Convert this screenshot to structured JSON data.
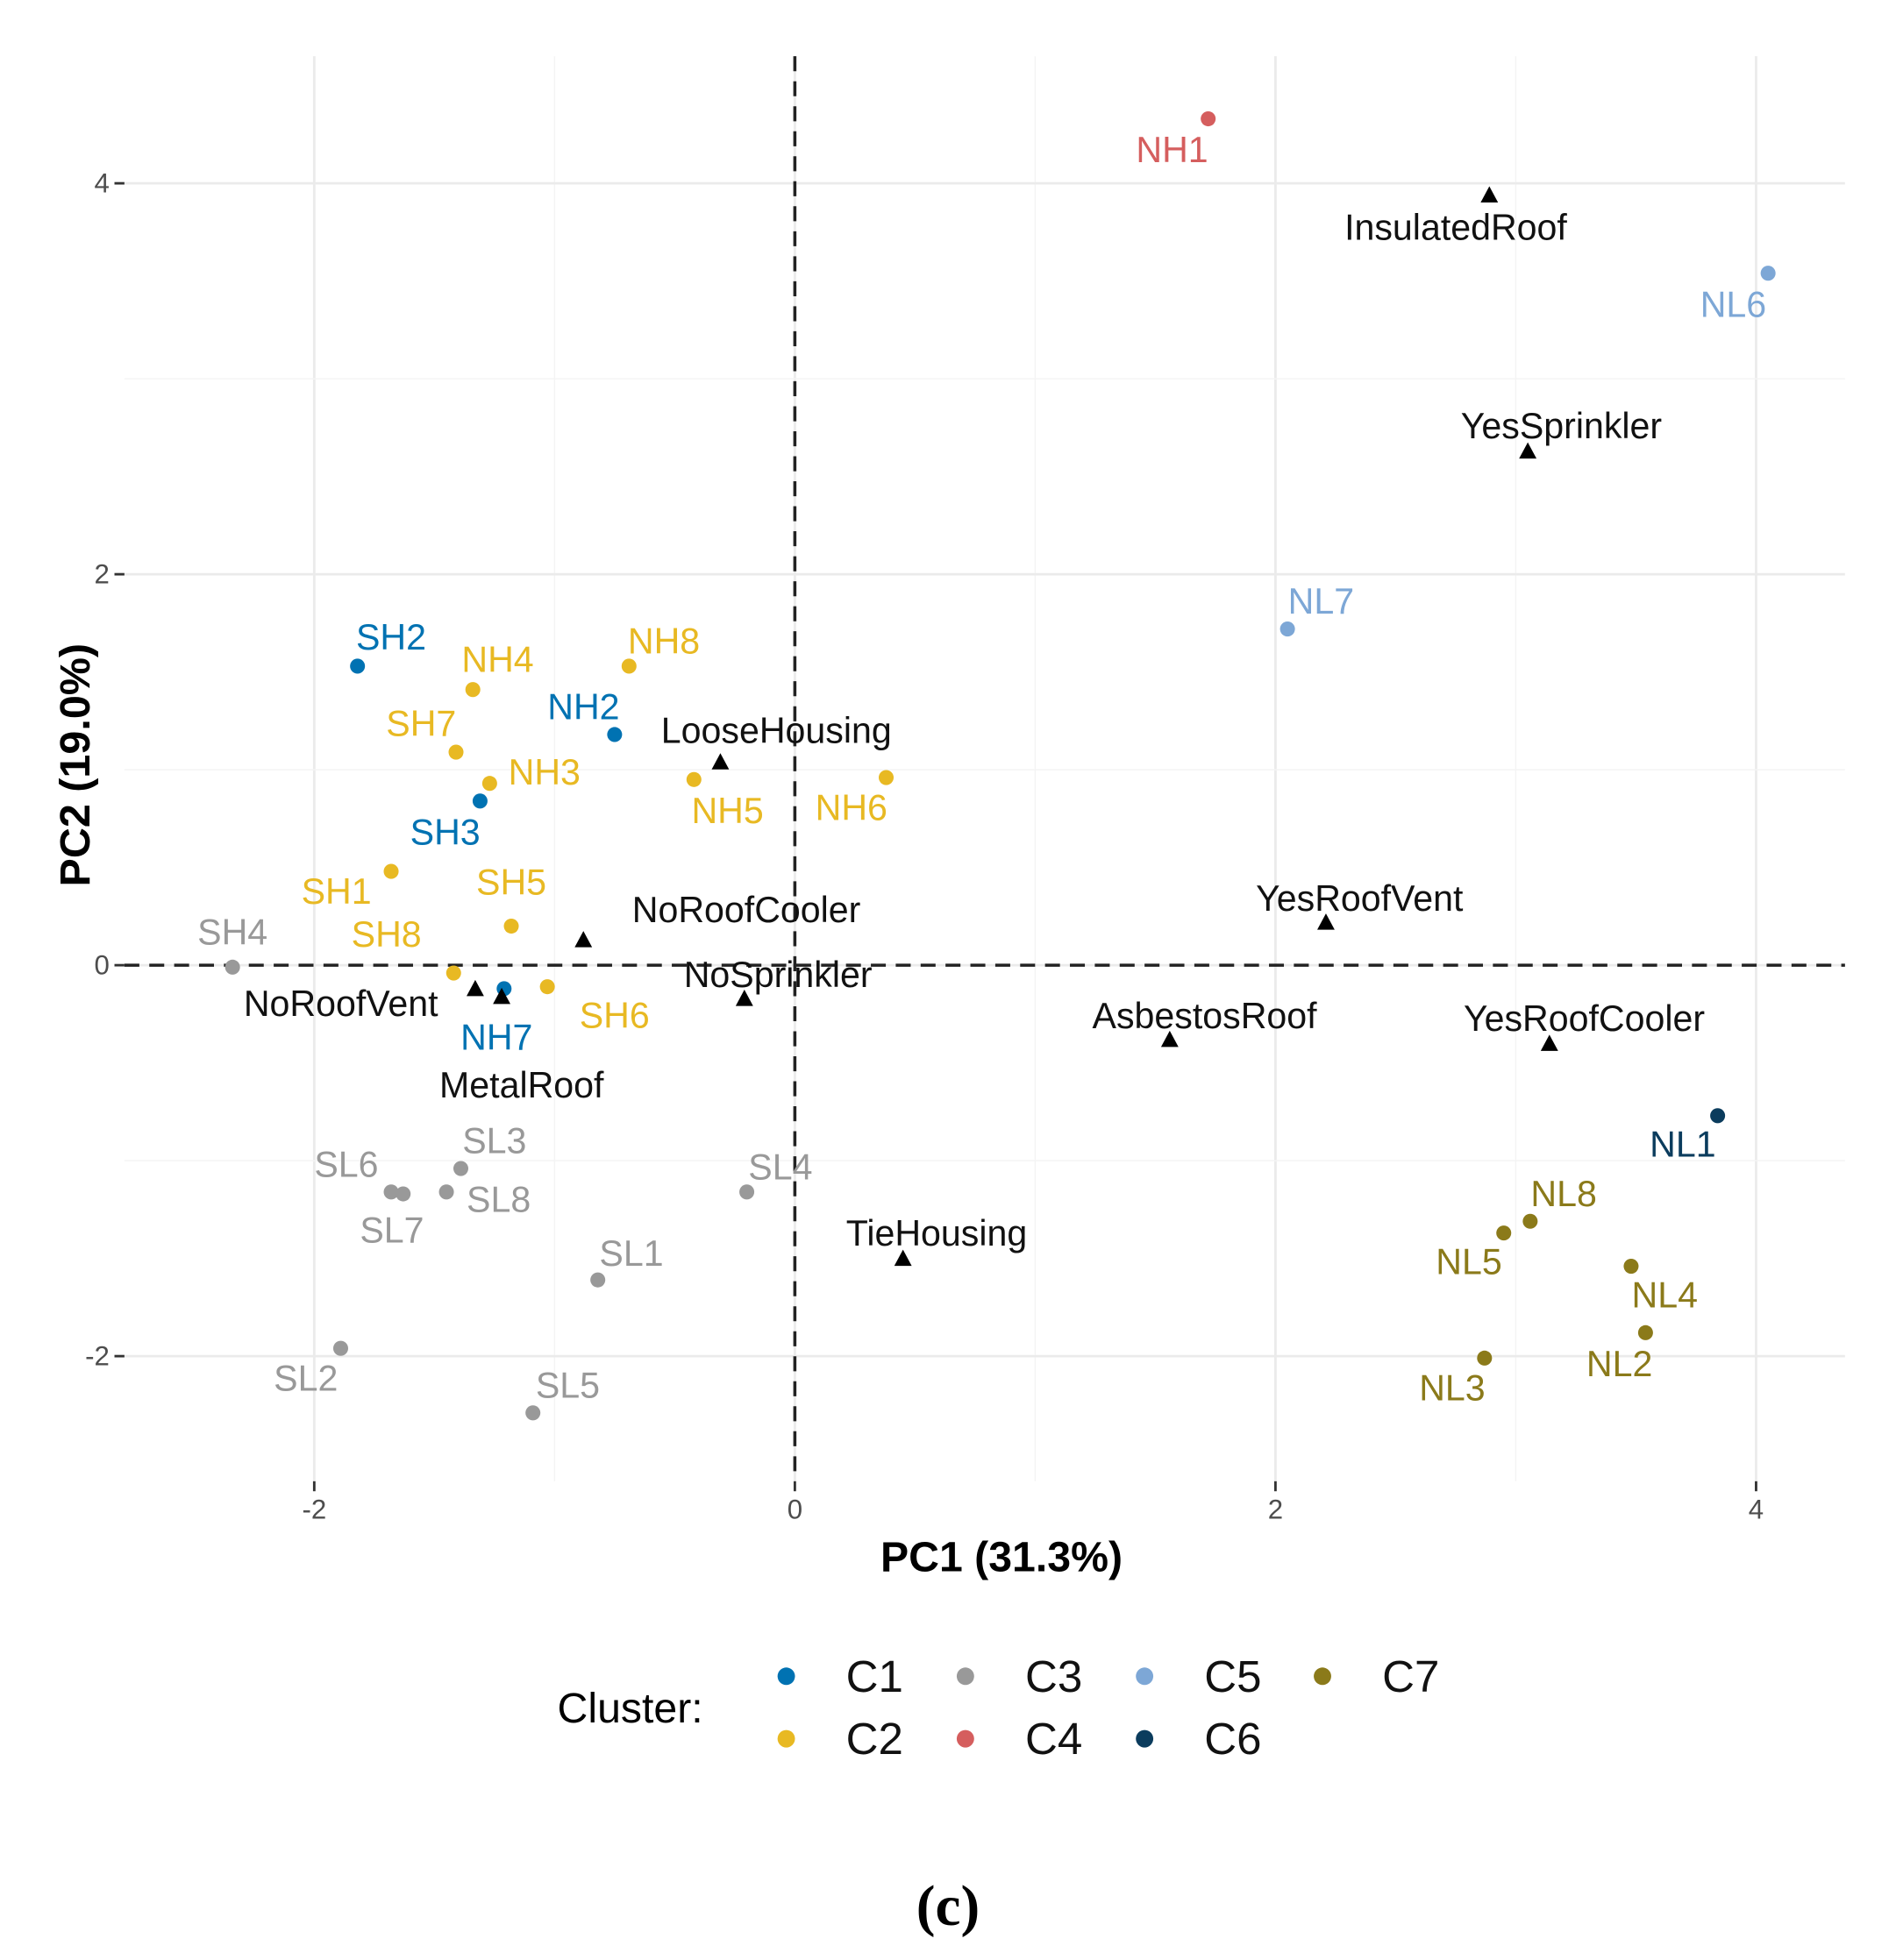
{
  "chart_data": {
    "type": "scatter",
    "title": "",
    "xlabel": "PC1 (31.3%)",
    "ylabel": "PC2 (19.0%)",
    "xlim": [
      -2.79,
      4.37
    ],
    "ylim": [
      -2.64,
      4.65
    ],
    "xticks": [
      -2,
      0,
      2,
      4
    ],
    "yticks": [
      -2,
      0,
      2,
      4
    ],
    "grid": true,
    "reference_lines": {
      "x": 0,
      "y": 0,
      "style": "dashed"
    },
    "legend": {
      "title": "Cluster:",
      "placement": "bottom",
      "entries": [
        {
          "name": "C1",
          "color": "#0072B2"
        },
        {
          "name": "C2",
          "color": "#E8B923"
        },
        {
          "name": "C3",
          "color": "#999999"
        },
        {
          "name": "C4",
          "color": "#D55E5E"
        },
        {
          "name": "C5",
          "color": "#7DA7D6"
        },
        {
          "name": "C6",
          "color": "#0B3C5D"
        },
        {
          "name": "C7",
          "color": "#8B7A1A"
        }
      ]
    },
    "points": [
      {
        "label": "NH1",
        "cluster": "C4",
        "x": 1.72,
        "y": 4.33
      },
      {
        "label": "NL6",
        "cluster": "C5",
        "x": 4.05,
        "y": 3.54
      },
      {
        "label": "NL7",
        "cluster": "C5",
        "x": 2.05,
        "y": 1.72
      },
      {
        "label": "SH2",
        "cluster": "C1",
        "x": -1.82,
        "y": 1.53
      },
      {
        "label": "NH4",
        "cluster": "C2",
        "x": -1.34,
        "y": 1.41
      },
      {
        "label": "NH8",
        "cluster": "C2",
        "x": -0.69,
        "y": 1.53
      },
      {
        "label": "NH2",
        "cluster": "C1",
        "x": -0.75,
        "y": 1.18
      },
      {
        "label": "SH7",
        "cluster": "C2",
        "x": -1.41,
        "y": 1.09
      },
      {
        "label": "NH3",
        "cluster": "C2",
        "x": -1.27,
        "y": 0.93
      },
      {
        "label": "NH5",
        "cluster": "C2",
        "x": -0.42,
        "y": 0.95
      },
      {
        "label": "NH6",
        "cluster": "C2",
        "x": 0.38,
        "y": 0.96
      },
      {
        "label": "SH3",
        "cluster": "C1",
        "x": -1.31,
        "y": 0.84
      },
      {
        "label": "SH1",
        "cluster": "C2",
        "x": -1.68,
        "y": 0.48
      },
      {
        "label": "SH5",
        "cluster": "C2",
        "x": -1.18,
        "y": 0.2
      },
      {
        "label": "SH8",
        "cluster": "C2",
        "x": -1.42,
        "y": -0.04
      },
      {
        "label": "SH6",
        "cluster": "C2",
        "x": -1.03,
        "y": -0.11
      },
      {
        "label": "NH7",
        "cluster": "C1",
        "x": -1.21,
        "y": -0.12
      },
      {
        "label": "SH4",
        "cluster": "C3",
        "x": -2.34,
        "y": -0.01
      },
      {
        "label": "SL3",
        "cluster": "C3",
        "x": -1.39,
        "y": -1.04
      },
      {
        "label": "SL6",
        "cluster": "C3",
        "x": -1.68,
        "y": -1.16
      },
      {
        "label": "SL7",
        "cluster": "C3",
        "x": -1.63,
        "y": -1.17
      },
      {
        "label": "SL8",
        "cluster": "C3",
        "x": -1.45,
        "y": -1.16
      },
      {
        "label": "SL4",
        "cluster": "C3",
        "x": -0.2,
        "y": -1.16
      },
      {
        "label": "SL1",
        "cluster": "C3",
        "x": -0.82,
        "y": -1.61
      },
      {
        "label": "SL2",
        "cluster": "C3",
        "x": -1.89,
        "y": -1.96
      },
      {
        "label": "SL5",
        "cluster": "C3",
        "x": -1.09,
        "y": -2.29
      },
      {
        "label": "NL1",
        "cluster": "C6",
        "x": 3.84,
        "y": -0.77
      },
      {
        "label": "NL8",
        "cluster": "C7",
        "x": 3.06,
        "y": -1.31
      },
      {
        "label": "NL5",
        "cluster": "C7",
        "x": 2.95,
        "y": -1.37
      },
      {
        "label": "NL4",
        "cluster": "C7",
        "x": 3.48,
        "y": -1.54
      },
      {
        "label": "NL2",
        "cluster": "C7",
        "x": 3.54,
        "y": -1.88
      },
      {
        "label": "NL3",
        "cluster": "C7",
        "x": 2.87,
        "y": -2.01
      }
    ],
    "variables": [
      {
        "label": "InsulatedRoof",
        "x": 2.89,
        "y": 3.94
      },
      {
        "label": "YesSprinkler",
        "x": 3.05,
        "y": 2.63
      },
      {
        "label": "LooseHousing",
        "x": -0.31,
        "y": 1.04
      },
      {
        "label": "NoRoofCooler",
        "x": -0.88,
        "y": 0.13
      },
      {
        "label": "NoRoofVent",
        "x": -1.33,
        "y": -0.12
      },
      {
        "label": "MetalRoof",
        "x": -1.22,
        "y": -0.16
      },
      {
        "label": "NoSprinkler",
        "x": -0.21,
        "y": -0.17
      },
      {
        "label": "YesRoofVent",
        "x": 2.21,
        "y": 0.22
      },
      {
        "label": "AsbestosRoof",
        "x": 1.56,
        "y": -0.38
      },
      {
        "label": "YesRoofCooler",
        "x": 3.14,
        "y": -0.4
      },
      {
        "label": "TieHousing",
        "x": 0.45,
        "y": -1.5
      }
    ]
  },
  "caption": "(c)"
}
